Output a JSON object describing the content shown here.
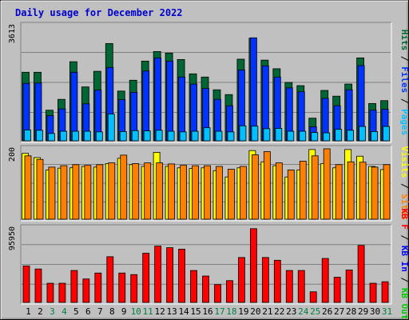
{
  "title": "Daily usage for December 2022",
  "colors": {
    "background": "#C0C0C0",
    "title": "#0000CC",
    "hits": "#006633",
    "files": "#0033FF",
    "pages": "#00C0FF",
    "visits": "#FFFF00",
    "sites": "#FF8000",
    "kb_in": "#0000FF",
    "kb_out": "#00CC00",
    "kbytes": "#FF0000",
    "weekend_day": "#008040"
  },
  "chart_data": [
    {
      "type": "bar",
      "name": "hits-files-pages",
      "categories": [
        "1",
        "2",
        "3",
        "4",
        "5",
        "6",
        "7",
        "8",
        "9",
        "10",
        "11",
        "12",
        "13",
        "14",
        "15",
        "16",
        "17",
        "18",
        "19",
        "20",
        "21",
        "22",
        "23",
        "24",
        "25",
        "26",
        "27",
        "28",
        "29",
        "30",
        "31"
      ],
      "ymax_label": "3613",
      "ylim": [
        0,
        3613
      ],
      "legend": [
        {
          "label": "Hits",
          "color": "#006633"
        },
        {
          "label": "Files",
          "color": "#0033FF"
        },
        {
          "label": "Pages",
          "color": "#00C0FF"
        }
      ],
      "series": [
        {
          "name": "Hits",
          "values": [
            2150,
            2150,
            960,
            1300,
            2480,
            1690,
            2180,
            3050,
            1560,
            1900,
            2500,
            2800,
            2750,
            2550,
            2100,
            2000,
            1600,
            1450,
            2560,
            3220,
            2530,
            2260,
            1830,
            1730,
            710,
            1580,
            1400,
            1780,
            2600,
            1170,
            1260
          ]
        },
        {
          "name": "Files",
          "values": [
            1800,
            1810,
            790,
            1000,
            2150,
            1160,
            1590,
            2300,
            1290,
            1520,
            2190,
            2600,
            2500,
            2000,
            1780,
            1640,
            1300,
            1100,
            2220,
            3230,
            2350,
            2000,
            1660,
            1540,
            440,
            1330,
            1100,
            1600,
            2360,
            960,
            990
          ]
        },
        {
          "name": "Pages",
          "values": [
            340,
            330,
            230,
            300,
            300,
            300,
            280,
            840,
            290,
            320,
            310,
            330,
            300,
            280,
            300,
            410,
            300,
            280,
            470,
            460,
            380,
            390,
            300,
            300,
            260,
            250,
            360,
            330,
            450,
            290,
            450
          ]
        }
      ]
    },
    {
      "type": "bar",
      "name": "visits-sites",
      "categories": [
        "1",
        "2",
        "3",
        "4",
        "5",
        "6",
        "7",
        "8",
        "9",
        "10",
        "11",
        "12",
        "13",
        "14",
        "15",
        "16",
        "17",
        "18",
        "19",
        "20",
        "21",
        "22",
        "23",
        "24",
        "25",
        "26",
        "27",
        "28",
        "29",
        "30",
        "31"
      ],
      "ymax_label": "200",
      "ylim": [
        0,
        200
      ],
      "legend": [
        {
          "label": "Visits",
          "color": "#FFFF00"
        },
        {
          "label": "Sites",
          "color": "#FF8000"
        }
      ],
      "series": [
        {
          "name": "Visits",
          "values": [
            187,
            175,
            140,
            145,
            146,
            150,
            148,
            158,
            173,
            155,
            150,
            190,
            150,
            146,
            144,
            146,
            138,
            120,
            146,
            195,
            163,
            152,
            120,
            140,
            198,
            158,
            146,
            198,
            179,
            150,
            141
          ]
        },
        {
          "name": "Sites",
          "values": [
            180,
            170,
            148,
            152,
            155,
            153,
            155,
            160,
            182,
            158,
            160,
            160,
            157,
            153,
            152,
            152,
            150,
            142,
            150,
            183,
            192,
            160,
            140,
            165,
            180,
            200,
            155,
            163,
            162,
            148,
            155
          ]
        }
      ]
    },
    {
      "type": "bar",
      "name": "kbytes",
      "categories": [
        "1",
        "2",
        "3",
        "4",
        "5",
        "6",
        "7",
        "8",
        "9",
        "10",
        "11",
        "12",
        "13",
        "14",
        "15",
        "16",
        "17",
        "18",
        "19",
        "20",
        "21",
        "22",
        "23",
        "24",
        "25",
        "26",
        "27",
        "28",
        "29",
        "30",
        "31"
      ],
      "ymax_label": "95950",
      "ylim": [
        0,
        95950
      ],
      "legend": [
        {
          "label": "KB F",
          "color": "#FF0000"
        },
        {
          "label": "KB In",
          "color": "#0000FF"
        },
        {
          "label": "KB Out",
          "color": "#00CC00"
        }
      ],
      "series": [
        {
          "name": "KBytes",
          "values": [
            46100,
            42200,
            24200,
            24200,
            40300,
            29600,
            37100,
            57700,
            37100,
            35100,
            62100,
            71100,
            69100,
            67200,
            40300,
            33300,
            22500,
            27500,
            56700,
            93100,
            56700,
            53200,
            40300,
            40300,
            13400,
            55500,
            31800,
            40900,
            72000,
            24200,
            26100
          ]
        }
      ]
    }
  ]
}
